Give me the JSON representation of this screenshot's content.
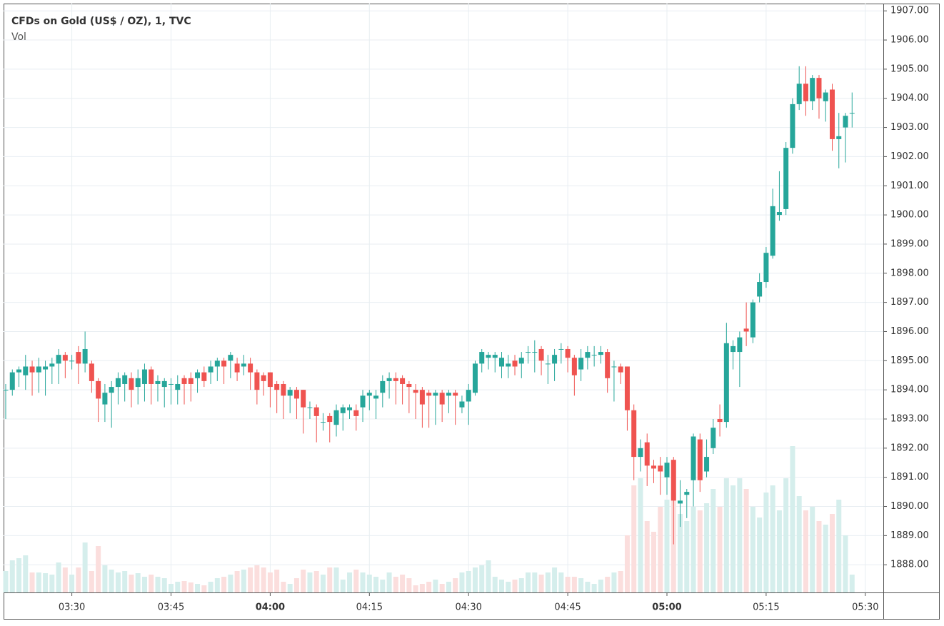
{
  "chart_data": {
    "type": "candlestick",
    "title": "CFDs on Gold (US$ / OZ), 1, TVC",
    "volume_label": "Vol",
    "up_color": "#26a69a",
    "down_color": "#ef5350",
    "volume_up_color": "#d5eeec",
    "volume_down_color": "#fbdedd",
    "grid": true,
    "x": [
      "03:20",
      "03:21",
      "03:22",
      "03:23",
      "03:24",
      "03:25",
      "03:26",
      "03:27",
      "03:28",
      "03:29",
      "03:30",
      "03:31",
      "03:32",
      "03:33",
      "03:34",
      "03:35",
      "03:36",
      "03:37",
      "03:38",
      "03:39",
      "03:40",
      "03:41",
      "03:42",
      "03:43",
      "03:44",
      "03:45",
      "03:46",
      "03:47",
      "03:48",
      "03:49",
      "03:50",
      "03:51",
      "03:52",
      "03:53",
      "03:54",
      "03:55",
      "03:56",
      "03:57",
      "03:58",
      "03:59",
      "04:00",
      "04:01",
      "04:02",
      "04:03",
      "04:04",
      "04:05",
      "04:06",
      "04:07",
      "04:08",
      "04:09",
      "04:10",
      "04:11",
      "04:12",
      "04:13",
      "04:14",
      "04:15",
      "04:16",
      "04:17",
      "04:18",
      "04:19",
      "04:20",
      "04:21",
      "04:22",
      "04:23",
      "04:24",
      "04:25",
      "04:26",
      "04:27",
      "04:28",
      "04:29",
      "04:30",
      "04:31",
      "04:32",
      "04:33",
      "04:34",
      "04:35",
      "04:36",
      "04:37",
      "04:38",
      "04:39",
      "04:40",
      "04:41",
      "04:42",
      "04:43",
      "04:44",
      "04:45",
      "04:46",
      "04:47",
      "04:48",
      "04:49",
      "04:50",
      "04:51",
      "04:52",
      "04:53",
      "04:54",
      "04:55",
      "04:56",
      "04:57",
      "04:58",
      "04:59",
      "05:00",
      "05:01",
      "05:02",
      "05:03",
      "05:04",
      "05:05",
      "05:06",
      "05:07",
      "05:08",
      "05:09",
      "05:10",
      "05:11",
      "05:12",
      "05:13",
      "05:14",
      "05:15",
      "05:16",
      "05:17",
      "05:18",
      "05:19",
      "05:20",
      "05:21",
      "05:22",
      "05:23",
      "05:24",
      "05:25",
      "05:26",
      "05:27",
      "05:28"
    ],
    "open": [
      1894.0,
      1894.0,
      1894.6,
      1894.5,
      1894.8,
      1894.6,
      1894.7,
      1894.8,
      1894.9,
      1895.2,
      1895.0,
      1895.3,
      1894.9,
      1894.9,
      1894.3,
      1893.5,
      1893.9,
      1894.1,
      1894.2,
      1894.4,
      1894.1,
      1894.2,
      1894.7,
      1894.2,
      1894.1,
      1894.2,
      1894.0,
      1894.4,
      1894.4,
      1894.4,
      1894.6,
      1894.6,
      1894.8,
      1895.0,
      1895.0,
      1894.9,
      1894.8,
      1894.9,
      1894.6,
      1894.5,
      1894.6,
      1894.2,
      1894.2,
      1893.8,
      1894.0,
      1894.0,
      1893.4,
      1893.4,
      1892.9,
      1893.1,
      1892.8,
      1893.2,
      1893.3,
      1893.3,
      1893.4,
      1893.8,
      1893.7,
      1893.9,
      1894.3,
      1894.4,
      1894.4,
      1894.2,
      1894.0,
      1894.0,
      1893.9,
      1893.8,
      1893.9,
      1893.8,
      1893.9,
      1893.4,
      1893.6,
      1893.9,
      1894.9,
      1895.1,
      1895.1,
      1894.8,
      1894.8,
      1895.0,
      1894.9,
      1895.3,
      1895.3,
      1895.4,
      1894.9,
      1894.9,
      1895.4,
      1895.4,
      1895.1,
      1894.7,
      1895.1,
      1895.2,
      1895.2,
      1895.3,
      1894.8,
      1894.8,
      1894.8,
      1893.3,
      1891.7,
      1892.2,
      1891.4,
      1891.4,
      1891.0,
      1891.6,
      1890.1,
      1890.4,
      1890.9,
      1892.3,
      1891.2,
      1892.0,
      1893.0,
      1892.9,
      1895.3,
      1895.3,
      1896.1,
      1895.8,
      1897.2,
      1897.7,
      1898.6,
      1900.0,
      1900.2,
      1902.3,
      1903.8,
      1904.5,
      1903.9,
      1904.7,
      1903.9,
      1904.3,
      1902.6,
      1903.0,
      1903.5
    ],
    "high": [
      1894.2,
      1894.7,
      1894.8,
      1895.2,
      1895.0,
      1895.1,
      1895.0,
      1895.1,
      1895.4,
      1895.3,
      1895.2,
      1895.5,
      1896.0,
      1895.0,
      1894.4,
      1894.2,
      1894.3,
      1894.6,
      1894.6,
      1894.6,
      1894.7,
      1894.9,
      1894.8,
      1894.5,
      1894.4,
      1894.4,
      1894.5,
      1894.5,
      1894.6,
      1894.7,
      1894.8,
      1895.0,
      1895.1,
      1895.1,
      1895.3,
      1895.1,
      1895.2,
      1895.1,
      1894.7,
      1894.6,
      1894.6,
      1894.3,
      1894.3,
      1894.1,
      1894.1,
      1894.0,
      1893.6,
      1893.5,
      1893.2,
      1893.2,
      1893.5,
      1893.5,
      1893.5,
      1893.5,
      1894.0,
      1894.0,
      1894.0,
      1894.5,
      1894.6,
      1894.6,
      1894.5,
      1894.3,
      1894.2,
      1894.1,
      1894.0,
      1894.0,
      1894.0,
      1894.0,
      1894.0,
      1893.8,
      1894.2,
      1895.0,
      1895.4,
      1895.3,
      1895.3,
      1895.3,
      1895.2,
      1895.2,
      1895.3,
      1895.5,
      1895.7,
      1895.5,
      1895.2,
      1895.4,
      1895.6,
      1895.5,
      1895.2,
      1895.4,
      1895.5,
      1895.5,
      1895.5,
      1895.4,
      1895.0,
      1894.9,
      1894.8,
      1893.5,
      1892.3,
      1892.5,
      1891.6,
      1891.7,
      1891.7,
      1891.7,
      1890.9,
      1890.6,
      1892.5,
      1892.5,
      1892.3,
      1893.0,
      1893.5,
      1896.3,
      1895.7,
      1896.0,
      1897.0,
      1897.1,
      1898.0,
      1898.9,
      1900.9,
      1901.5,
      1902.5,
      1904.0,
      1905.1,
      1905.1,
      1904.8,
      1904.8,
      1904.3,
      1904.5,
      1903.5,
      1903.5,
      1904.2
    ],
    "low": [
      1893.0,
      1893.8,
      1894.1,
      1894.0,
      1893.8,
      1893.9,
      1893.8,
      1894.2,
      1894.2,
      1894.4,
      1894.7,
      1894.2,
      1894.6,
      1893.9,
      1892.9,
      1892.9,
      1892.7,
      1893.5,
      1893.6,
      1893.4,
      1893.5,
      1893.6,
      1893.5,
      1893.6,
      1893.4,
      1893.5,
      1893.5,
      1893.5,
      1893.6,
      1893.9,
      1894.1,
      1894.2,
      1894.3,
      1894.2,
      1894.4,
      1894.3,
      1894.5,
      1894.0,
      1893.5,
      1893.8,
      1893.4,
      1893.2,
      1893.0,
      1893.2,
      1893.0,
      1892.5,
      1893.0,
      1892.2,
      1892.6,
      1892.2,
      1892.4,
      1892.6,
      1893.0,
      1892.6,
      1892.9,
      1893.3,
      1893.0,
      1893.4,
      1893.7,
      1893.5,
      1893.5,
      1893.2,
      1893.0,
      1892.7,
      1892.7,
      1892.8,
      1892.9,
      1893.2,
      1892.8,
      1893.2,
      1892.8,
      1893.8,
      1894.6,
      1894.7,
      1894.6,
      1894.4,
      1894.4,
      1894.5,
      1894.4,
      1894.9,
      1894.6,
      1894.5,
      1894.2,
      1894.3,
      1894.9,
      1894.6,
      1893.8,
      1894.3,
      1894.7,
      1894.8,
      1894.9,
      1893.9,
      1893.6,
      1894.2,
      1892.6,
      1890.9,
      1891.2,
      1890.7,
      1890.8,
      1890.4,
      1890.4,
      1888.7,
      1889.3,
      1889.6,
      1890.0,
      1890.5,
      1891.0,
      1891.8,
      1892.4,
      1892.7,
      1894.7,
      1894.1,
      1895.5,
      1895.6,
      1897.0,
      1897.5,
      1898.5,
      1899.8,
      1900.0,
      1902.1,
      1903.6,
      1903.4,
      1903.6,
      1903.3,
      1903.2,
      1902.2,
      1901.6,
      1901.8,
      1903.0
    ],
    "close": [
      1894.0,
      1894.6,
      1894.7,
      1894.8,
      1894.6,
      1894.8,
      1894.8,
      1894.9,
      1895.2,
      1895.0,
      1895.0,
      1894.9,
      1895.4,
      1894.3,
      1893.7,
      1893.9,
      1894.1,
      1894.4,
      1894.5,
      1894.0,
      1894.4,
      1894.7,
      1894.2,
      1894.3,
      1894.3,
      1894.2,
      1894.2,
      1894.2,
      1894.2,
      1894.6,
      1894.3,
      1894.8,
      1895.0,
      1894.8,
      1895.2,
      1894.6,
      1894.9,
      1894.6,
      1894.0,
      1894.3,
      1894.1,
      1894.0,
      1893.8,
      1894.0,
      1893.7,
      1893.4,
      1893.4,
      1893.1,
      1892.9,
      1892.9,
      1893.3,
      1893.4,
      1893.4,
      1893.1,
      1893.8,
      1893.9,
      1893.8,
      1894.3,
      1894.4,
      1894.3,
      1894.2,
      1894.1,
      1893.9,
      1893.5,
      1893.8,
      1893.9,
      1893.5,
      1893.9,
      1893.8,
      1893.6,
      1894.0,
      1894.9,
      1895.3,
      1895.2,
      1895.2,
      1895.1,
      1894.9,
      1894.8,
      1895.1,
      1895.3,
      1895.3,
      1895.0,
      1894.9,
      1895.2,
      1895.4,
      1895.1,
      1894.5,
      1895.1,
      1895.3,
      1895.2,
      1895.3,
      1894.4,
      1894.8,
      1894.6,
      1893.3,
      1891.7,
      1892.0,
      1891.4,
      1891.3,
      1891.2,
      1891.5,
      1890.2,
      1890.2,
      1890.5,
      1892.4,
      1890.9,
      1891.7,
      1892.7,
      1892.9,
      1895.6,
      1895.5,
      1895.8,
      1896.0,
      1897.0,
      1897.7,
      1898.7,
      1900.3,
      1900.1,
      1902.3,
      1903.8,
      1904.5,
      1903.9,
      1904.7,
      1904.0,
      1904.2,
      1902.6,
      1902.7,
      1903.4,
      1903.5
    ],
    "volume": [
      30,
      45,
      48,
      52,
      28,
      28,
      27,
      25,
      42,
      35,
      25,
      35,
      70,
      30,
      65,
      38,
      32,
      28,
      30,
      25,
      27,
      22,
      25,
      22,
      20,
      12,
      15,
      16,
      14,
      12,
      10,
      15,
      20,
      22,
      25,
      30,
      32,
      35,
      38,
      35,
      28,
      32,
      15,
      12,
      20,
      32,
      28,
      30,
      25,
      35,
      35,
      18,
      28,
      32,
      28,
      25,
      22,
      18,
      28,
      22,
      25,
      20,
      10,
      12,
      15,
      18,
      12,
      15,
      20,
      28,
      30,
      35,
      38,
      45,
      22,
      18,
      15,
      18,
      20,
      28,
      28,
      25,
      28,
      35,
      28,
      22,
      22,
      20,
      15,
      12,
      18,
      22,
      28,
      30,
      80,
      150,
      160,
      100,
      85,
      120,
      130,
      140,
      110,
      100,
      120,
      115,
      125,
      145,
      120,
      160,
      150,
      160,
      145,
      120,
      105,
      140,
      150,
      115,
      160,
      205,
      135,
      115,
      120,
      100,
      95,
      110,
      130,
      80,
      25
    ],
    "ylim": [
      1887.05,
      1907.25
    ],
    "y2lim": [
      0,
      825
    ],
    "yticks": [
      {
        "value": 1888,
        "label": "1888.00"
      },
      {
        "value": 1889,
        "label": "1889.00"
      },
      {
        "value": 1890,
        "label": "1890.00"
      },
      {
        "value": 1891,
        "label": "1891.00"
      },
      {
        "value": 1892,
        "label": "1892.00"
      },
      {
        "value": 1893,
        "label": "1893.00"
      },
      {
        "value": 1894,
        "label": "1894.00"
      },
      {
        "value": 1895,
        "label": "1895.00"
      },
      {
        "value": 1896,
        "label": "1896.00"
      },
      {
        "value": 1897,
        "label": "1897.00"
      },
      {
        "value": 1898,
        "label": "1898.00"
      },
      {
        "value": 1899,
        "label": "1899.00"
      },
      {
        "value": 1900,
        "label": "1900.00"
      },
      {
        "value": 1901,
        "label": "1901.00"
      },
      {
        "value": 1902,
        "label": "1902.00"
      },
      {
        "value": 1903,
        "label": "1903.00"
      },
      {
        "value": 1904,
        "label": "1904.00"
      },
      {
        "value": 1905,
        "label": "1905.00"
      },
      {
        "value": 1906,
        "label": "1906.00"
      },
      {
        "value": 1907,
        "label": "1907.00"
      }
    ],
    "xticks": [
      "03:30",
      "03:45",
      "04:00",
      "04:15",
      "04:30",
      "04:45",
      "05:00",
      "05:15",
      "05:30"
    ]
  }
}
